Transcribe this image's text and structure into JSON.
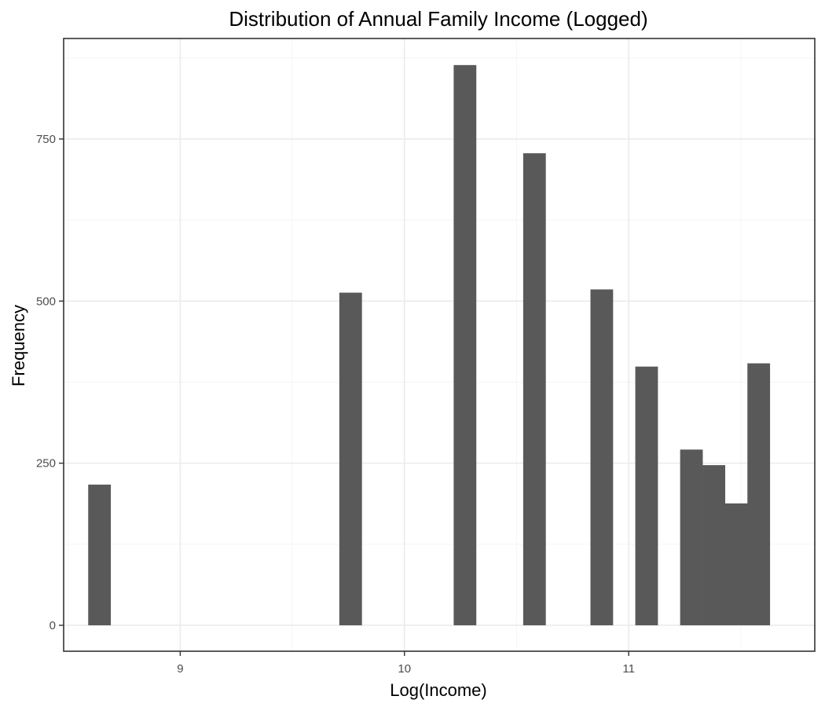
{
  "chart_data": {
    "type": "bar",
    "subtype": "histogram",
    "title": "Distribution of Annual Family Income (Logged)",
    "xlabel": "Log(Income)",
    "ylabel": "Frequency",
    "xlim": [
      8.48,
      11.83
    ],
    "ylim": [
      -40,
      905
    ],
    "x_ticks": [
      9,
      10,
      11
    ],
    "x_tick_labels": [
      "9",
      "10",
      "11"
    ],
    "y_ticks": [
      0,
      250,
      500,
      750
    ],
    "y_tick_labels": [
      "0",
      "250",
      "500",
      "750"
    ],
    "x_minor_ticks": [
      8.5,
      9.5,
      10.5,
      11.5
    ],
    "y_minor_ticks": [
      125,
      375,
      625,
      875
    ],
    "bin_width": 0.101,
    "bins": [
      {
        "x": 8.64,
        "value": 217
      },
      {
        "x": 9.76,
        "value": 513
      },
      {
        "x": 10.27,
        "value": 864
      },
      {
        "x": 10.58,
        "value": 728
      },
      {
        "x": 10.88,
        "value": 518
      },
      {
        "x": 11.08,
        "value": 399
      },
      {
        "x": 11.28,
        "value": 271
      },
      {
        "x": 11.38,
        "value": 247
      },
      {
        "x": 11.48,
        "value": 188
      },
      {
        "x": 11.58,
        "value": 404
      }
    ],
    "grid": true,
    "colors": {
      "bar": "#595959",
      "grid_major": "#ebebeb",
      "grid_minor": "#f5f5f5",
      "axis": "#333333",
      "tick_text": "#4d4d4d"
    }
  }
}
